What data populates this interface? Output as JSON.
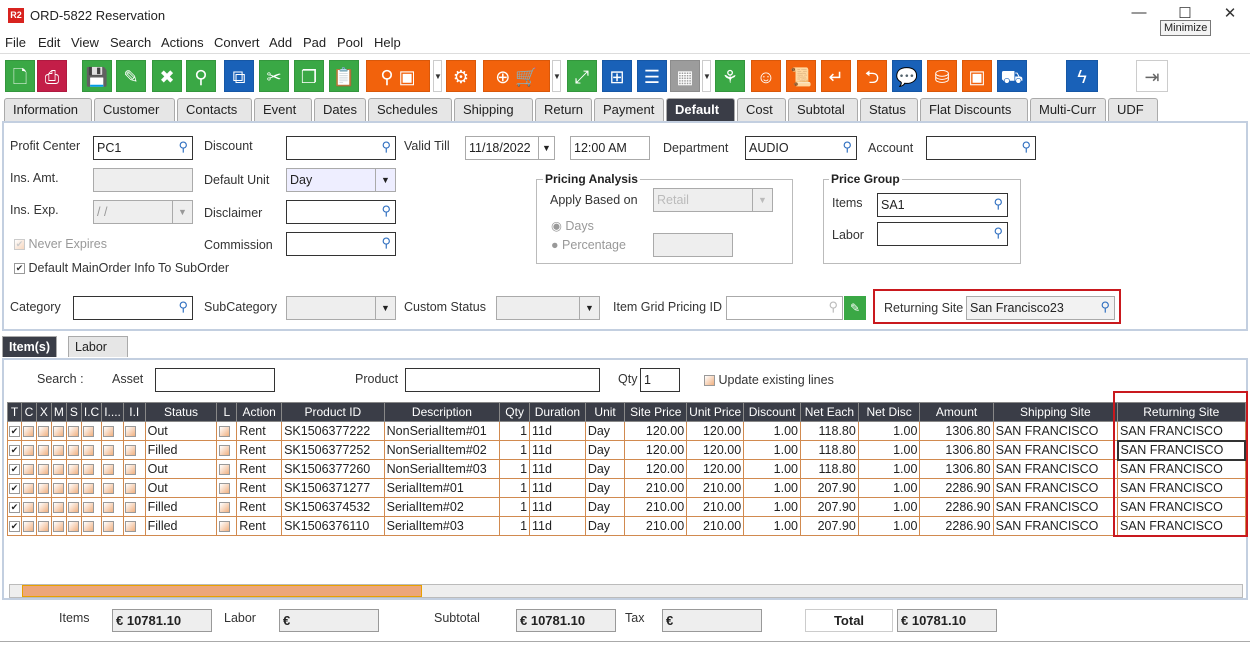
{
  "window": {
    "logo": "R2",
    "title": "ORD-5822 Reservation",
    "minimize": "—",
    "maximize": "☐",
    "close": "✕",
    "tooltip": "Minimize"
  },
  "menu": [
    "File",
    "Edit",
    "View",
    "Search",
    "Actions",
    "Convert",
    "Add",
    "Pad",
    "Pool",
    "Help"
  ],
  "toolbar": [
    {
      "name": "new-document",
      "glyph": "🗋",
      "color": "g"
    },
    {
      "name": "print",
      "glyph": "⎙",
      "color": "r"
    },
    {
      "name": "save",
      "glyph": "💾",
      "color": "g"
    },
    {
      "name": "edit",
      "glyph": "✎",
      "color": "g"
    },
    {
      "name": "delete",
      "glyph": "✖",
      "color": "g"
    },
    {
      "name": "search",
      "glyph": "⚲",
      "color": "g"
    },
    {
      "name": "copy-document",
      "glyph": "⧉",
      "color": "b"
    },
    {
      "name": "cut",
      "glyph": "✂",
      "color": "g"
    },
    {
      "name": "duplicate",
      "glyph": "❐",
      "color": "g"
    },
    {
      "name": "paste",
      "glyph": "📋",
      "color": "g"
    },
    {
      "name": "search-inventory",
      "glyph": "⚲ ▣",
      "color": "o"
    },
    {
      "name": "gears",
      "glyph": "⚙",
      "color": "o"
    },
    {
      "name": "add-purchase-order",
      "glyph": "⊕ 🛒",
      "color": "o"
    },
    {
      "name": "expand",
      "glyph": "⤢",
      "color": "g"
    },
    {
      "name": "hierarchy",
      "glyph": "⊞",
      "color": "b"
    },
    {
      "name": "message",
      "glyph": "☰",
      "color": "b"
    },
    {
      "name": "calendar",
      "glyph": "▦",
      "color": "gr"
    },
    {
      "name": "org-tree",
      "glyph": "⚘",
      "color": "g"
    },
    {
      "name": "smiley",
      "glyph": "☺",
      "color": "o"
    },
    {
      "name": "scroll",
      "glyph": "📜",
      "color": "o"
    },
    {
      "name": "return",
      "glyph": "↵",
      "color": "o"
    },
    {
      "name": "box-return",
      "glyph": "⮌",
      "color": "o"
    },
    {
      "name": "chat-count",
      "glyph": "💬",
      "color": "b"
    },
    {
      "name": "coins",
      "glyph": "⛁",
      "color": "o"
    },
    {
      "name": "safe",
      "glyph": "▣",
      "color": "o"
    },
    {
      "name": "delivery-truck",
      "glyph": "⛟",
      "color": "b"
    },
    {
      "name": "lightning",
      "glyph": "ϟ",
      "color": "b"
    },
    {
      "name": "exit",
      "glyph": "⇥",
      "color": "w"
    }
  ],
  "tabs": [
    "Information",
    "Customer",
    "Contacts",
    "Event",
    "Dates",
    "Schedules",
    "Shipping",
    "Return",
    "Payment",
    "Default",
    "Cost",
    "Subtotal",
    "Status",
    "Flat Discounts",
    "Multi-Curr",
    "UDF"
  ],
  "active_tab": "Default",
  "form": {
    "profit_center_label": "Profit Center",
    "profit_center": "PC1",
    "ins_amt_label": "Ins. Amt.",
    "ins_amt": "",
    "ins_exp_label": "Ins. Exp.",
    "ins_exp": " / /",
    "never_expires": "Never Expires",
    "default_main": "Default MainOrder Info To SubOrder",
    "discount_label": "Discount",
    "discount": "",
    "default_unit_label": "Default Unit",
    "default_unit": "Day",
    "disclaimer_label": "Disclaimer",
    "disclaimer": "",
    "commission_label": "Commission",
    "commission": "",
    "valid_till_label": "Valid Till",
    "valid_date": "11/18/2022",
    "valid_time": "12:00 AM",
    "department_label": "Department",
    "department": "AUDIO",
    "account_label": "Account",
    "account": "",
    "pricing_title": "Pricing Analysis",
    "apply_label": "Apply Based on",
    "apply_value": "Retail",
    "days": "Days",
    "percentage": "Percentage",
    "price_group_title": "Price Group",
    "items_label": "Items",
    "items_value": "SA1",
    "labor_label": "Labor",
    "labor_value": "",
    "category_label": "Category",
    "subcategory_label": "SubCategory",
    "custom_status_label": "Custom Status",
    "item_grid_label": "Item Grid Pricing ID",
    "returning_site_label": "Returning Site",
    "returning_site": "San Francisco23"
  },
  "subtabs": [
    "Item(s)",
    "Labor"
  ],
  "search": {
    "label": "Search :",
    "asset": "Asset",
    "product": "Product",
    "qty_label": "Qty",
    "qty": "1",
    "update": "Update existing lines"
  },
  "grid": {
    "columns": [
      "T",
      "C",
      "X",
      "M",
      "S",
      "I.C",
      "I....",
      "I.I",
      "Status",
      "L",
      "Action",
      "Product ID",
      "Description",
      "Qty",
      "Duration",
      "Unit",
      "Site Price",
      "Unit Price",
      "Discount",
      "Net Each",
      "Net Disc",
      "Amount",
      "Shipping Site",
      "Returning Site"
    ],
    "rows": [
      [
        "Out",
        "Rent",
        "SK1506377222",
        "NonSerialItem#01",
        "1",
        "11d",
        "Day",
        "120.00",
        "120.00",
        "1.00",
        "118.80",
        "1.00",
        "1306.80",
        "SAN FRANCISCO",
        "SAN FRANCISCO"
      ],
      [
        "Filled",
        "Rent",
        "SK1506377252",
        "NonSerialItem#02",
        "1",
        "11d",
        "Day",
        "120.00",
        "120.00",
        "1.00",
        "118.80",
        "1.00",
        "1306.80",
        "SAN FRANCISCO",
        "SAN FRANCISCO"
      ],
      [
        "Out",
        "Rent",
        "SK1506377260",
        "NonSerialItem#03",
        "1",
        "11d",
        "Day",
        "120.00",
        "120.00",
        "1.00",
        "118.80",
        "1.00",
        "1306.80",
        "SAN FRANCISCO",
        "SAN FRANCISCO"
      ],
      [
        "Out",
        "Rent",
        "SK1506371277",
        "SerialItem#01",
        "1",
        "11d",
        "Day",
        "210.00",
        "210.00",
        "1.00",
        "207.90",
        "1.00",
        "2286.90",
        "SAN FRANCISCO",
        "SAN FRANCISCO"
      ],
      [
        "Filled",
        "Rent",
        "SK1506374532",
        "SerialItem#02",
        "1",
        "11d",
        "Day",
        "210.00",
        "210.00",
        "1.00",
        "207.90",
        "1.00",
        "2286.90",
        "SAN FRANCISCO",
        "SAN FRANCISCO"
      ],
      [
        "Filled",
        "Rent",
        "SK1506376110",
        "SerialItem#03",
        "1",
        "11d",
        "Day",
        "210.00",
        "210.00",
        "1.00",
        "207.90",
        "1.00",
        "2286.90",
        "SAN FRANCISCO",
        "SAN FRANCISCO"
      ]
    ],
    "editing_cell_button": "..."
  },
  "totals": {
    "items_label": "Items",
    "items": "€ 10781.10",
    "labor_label": "Labor",
    "labor": "€",
    "subtotal_label": "Subtotal",
    "subtotal": "€ 10781.10",
    "tax_label": "Tax",
    "tax": "€",
    "total_label": "Total",
    "total": "€ 10781.10"
  },
  "colors": {
    "active_tab": "#3a3d47",
    "highlight": "#c9191e",
    "green": "#3aa845",
    "orange": "#f2620c",
    "blue": "#1961b8"
  }
}
